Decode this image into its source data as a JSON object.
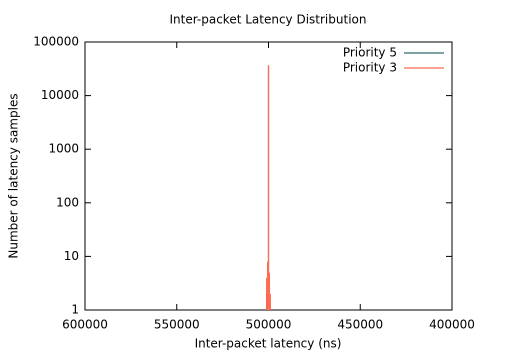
{
  "chart_data": {
    "type": "impulse",
    "title": "Inter-packet Latency Distribution",
    "x_label": "Inter-packet latency (ns)",
    "y_label": "Number of latency samples",
    "series": [
      {
        "name": "Priority 5",
        "color": "#2e6b6e",
        "x": [
          501000,
          500500,
          500000,
          499500,
          499000
        ],
        "values": [
          2,
          3,
          36000,
          3,
          1
        ]
      },
      {
        "name": "Priority 3",
        "color": "#ff6a50",
        "x": [
          502000,
          501000,
          500500,
          500000,
          499500,
          499000,
          498500
        ],
        "values": [
          1,
          4,
          8,
          37000,
          5,
          2,
          1
        ]
      }
    ],
    "xlim": [
      600000,
      400000
    ],
    "xticks": [
      600000,
      550000,
      500000,
      450000,
      400000
    ],
    "ylim": [
      1,
      100000
    ],
    "yticks": [
      1,
      10,
      100,
      1000,
      10000,
      100000
    ],
    "y_log": true,
    "grid": false,
    "legend": "top-right"
  }
}
